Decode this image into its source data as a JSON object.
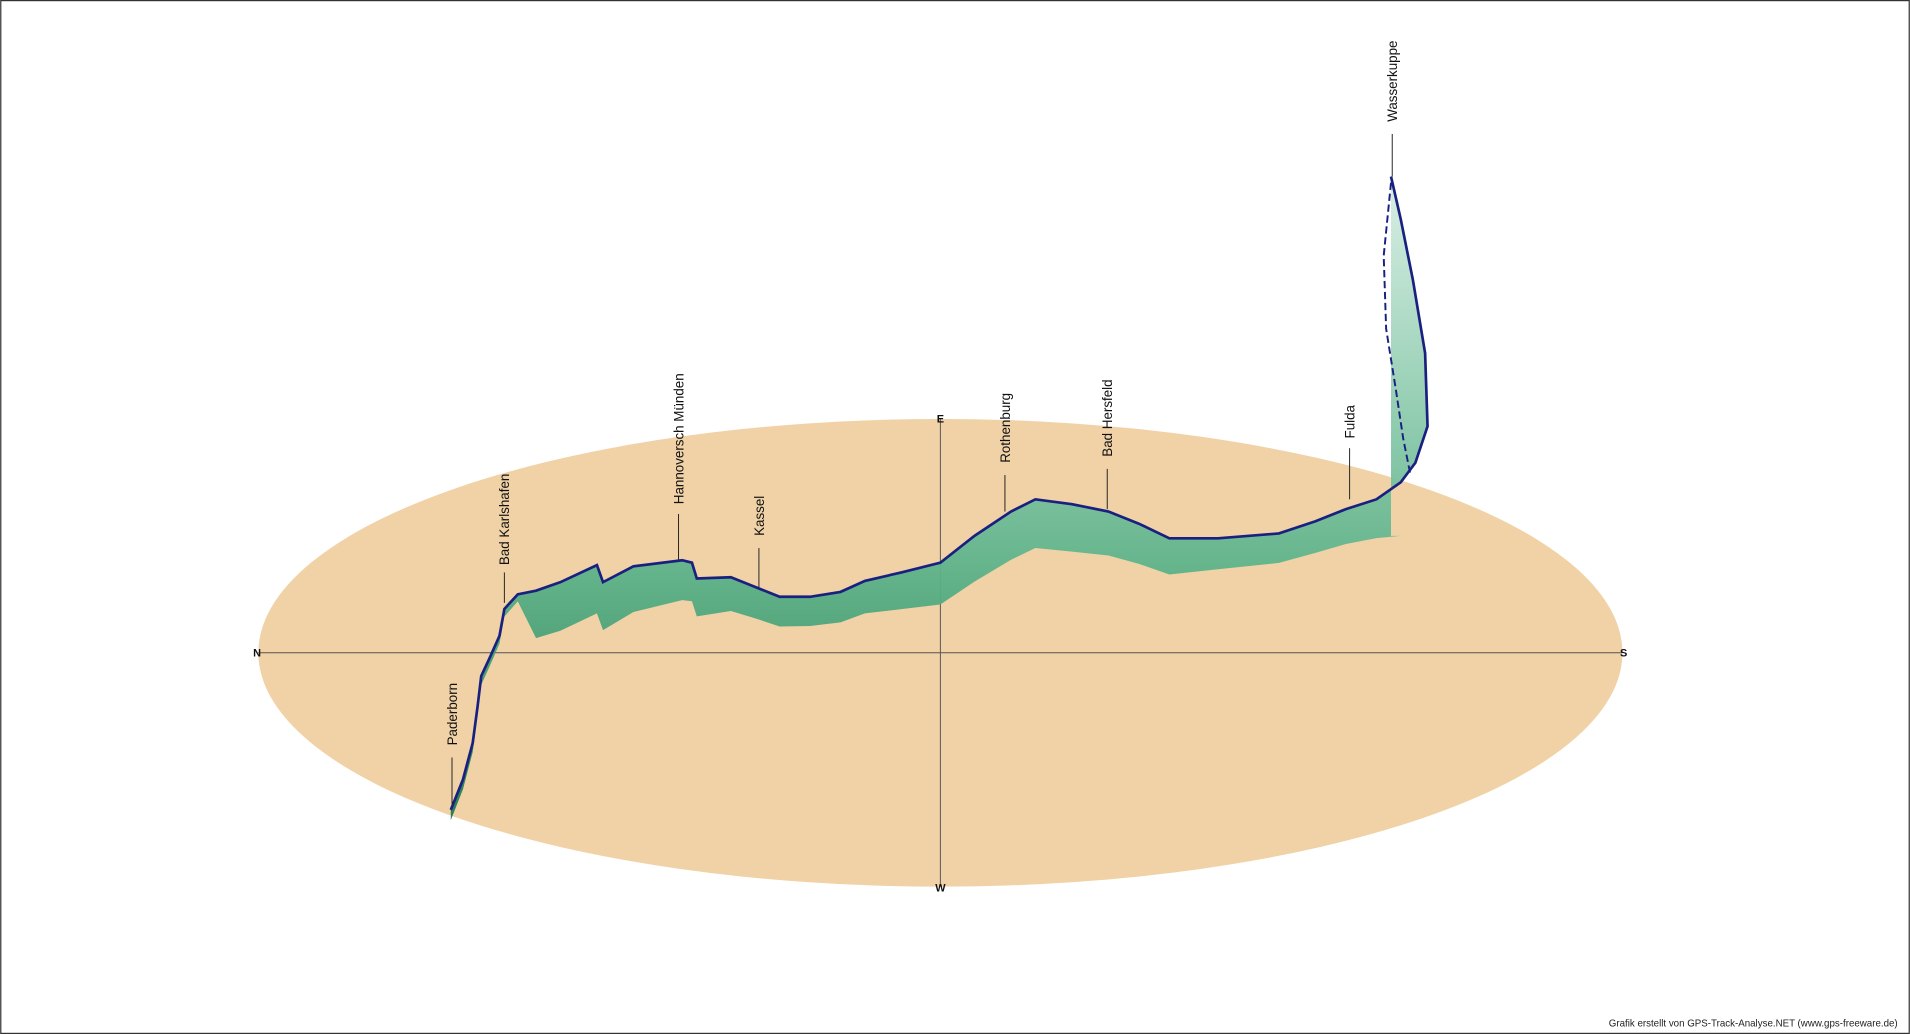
{
  "compass": {
    "north": "N",
    "east": "E",
    "south": "S",
    "west": "W"
  },
  "places": [
    "Paderborn",
    "Bad Karlshafen",
    "Hannoversch Münden",
    "Kassel",
    "Rothenburg",
    "Bad Hersfeld",
    "Fulda",
    "Wasserkuppe"
  ],
  "credit": "Grafik erstellt von GPS-Track-Analyse.NET (www.gps-freeware.de)"
}
